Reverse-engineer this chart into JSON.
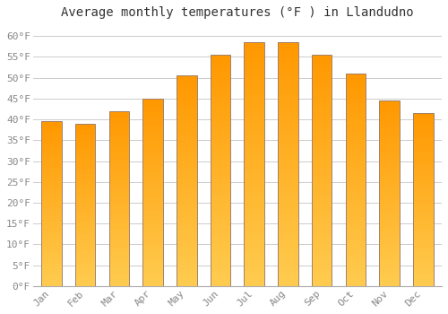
{
  "title": "Average monthly temperatures (°F ) in Llandudno",
  "months": [
    "Jan",
    "Feb",
    "Mar",
    "Apr",
    "May",
    "Jun",
    "Jul",
    "Aug",
    "Sep",
    "Oct",
    "Nov",
    "Dec"
  ],
  "temperatures": [
    39.5,
    39.0,
    42.0,
    45.0,
    50.5,
    55.5,
    58.5,
    58.5,
    55.5,
    51.0,
    44.5,
    41.5
  ],
  "bar_color": "#FFA726",
  "bar_edge_color": "#B8860B",
  "ylim": [
    0,
    63
  ],
  "yticks": [
    0,
    5,
    10,
    15,
    20,
    25,
    30,
    35,
    40,
    45,
    50,
    55,
    60
  ],
  "background_color": "#ffffff",
  "grid_color": "#cccccc",
  "title_fontsize": 10,
  "tick_fontsize": 8,
  "tick_color": "#888888",
  "font_family": "monospace"
}
